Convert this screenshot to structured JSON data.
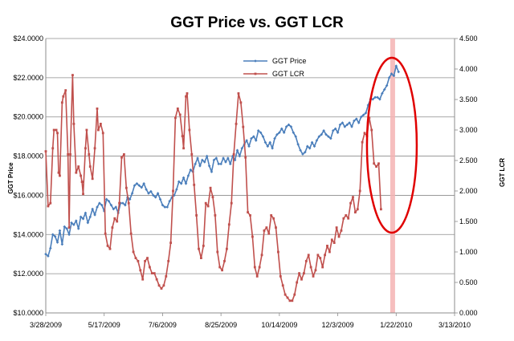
{
  "chart_data": {
    "type": "line",
    "title": "GGT Price vs. GGT LCR",
    "ylabel_left": "GGT Price",
    "ylabel_right": "GGT LCR",
    "x_ticks": [
      "3/28/2009",
      "5/17/2009",
      "7/6/2009",
      "8/25/2009",
      "10/14/2009",
      "12/3/2009",
      "1/22/2010",
      "3/13/2010"
    ],
    "x_range_days": [
      0,
      350
    ],
    "y_left": {
      "min": 10,
      "max": 24,
      "step": 2,
      "tick_labels": [
        "$10.0000",
        "$12.0000",
        "$14.0000",
        "$16.0000",
        "$18.0000",
        "$20.0000",
        "$22.0000",
        "$24.0000"
      ]
    },
    "y_right": {
      "min": 0,
      "max": 4.5,
      "step": 0.5,
      "tick_labels": [
        "0.000",
        "0.500",
        "1.000",
        "1.500",
        "2.000",
        "2.500",
        "3.000",
        "3.500",
        "4.000",
        "4.500"
      ]
    },
    "gridlines": true,
    "legend_position": "top-center",
    "highlight": {
      "x_day": 297,
      "note": "vertical shaded band with red ellipse around recent LCR spike"
    },
    "series": [
      {
        "name": "GGT Price",
        "axis": "left",
        "color": "#4a7ebb",
        "points": [
          [
            0,
            13.0
          ],
          [
            2,
            12.9
          ],
          [
            4,
            13.3
          ],
          [
            6,
            14.0
          ],
          [
            8,
            13.9
          ],
          [
            10,
            13.6
          ],
          [
            12,
            14.2
          ],
          [
            14,
            13.5
          ],
          [
            16,
            14.4
          ],
          [
            18,
            14.3
          ],
          [
            20,
            14.0
          ],
          [
            22,
            14.6
          ],
          [
            24,
            14.5
          ],
          [
            26,
            14.7
          ],
          [
            28,
            14.3
          ],
          [
            30,
            14.9
          ],
          [
            32,
            14.8
          ],
          [
            34,
            15.1
          ],
          [
            36,
            14.6
          ],
          [
            38,
            14.9
          ],
          [
            40,
            15.3
          ],
          [
            42,
            15.0
          ],
          [
            44,
            15.4
          ],
          [
            46,
            15.6
          ],
          [
            48,
            15.5
          ],
          [
            50,
            15.2
          ],
          [
            52,
            15.8
          ],
          [
            54,
            15.7
          ],
          [
            56,
            15.5
          ],
          [
            58,
            15.3
          ],
          [
            60,
            15.4
          ],
          [
            62,
            15.1
          ],
          [
            64,
            15.6
          ],
          [
            66,
            15.6
          ],
          [
            68,
            15.5
          ],
          [
            70,
            15.9
          ],
          [
            72,
            15.8
          ],
          [
            74,
            16.1
          ],
          [
            76,
            16.5
          ],
          [
            78,
            16.6
          ],
          [
            80,
            16.5
          ],
          [
            82,
            16.4
          ],
          [
            84,
            16.6
          ],
          [
            86,
            16.3
          ],
          [
            88,
            16.1
          ],
          [
            90,
            16.2
          ],
          [
            92,
            16.0
          ],
          [
            94,
            15.9
          ],
          [
            96,
            16.1
          ],
          [
            98,
            15.8
          ],
          [
            100,
            15.5
          ],
          [
            102,
            15.4
          ],
          [
            104,
            15.4
          ],
          [
            106,
            15.7
          ],
          [
            108,
            15.9
          ],
          [
            110,
            16.0
          ],
          [
            112,
            16.3
          ],
          [
            114,
            16.7
          ],
          [
            116,
            16.6
          ],
          [
            118,
            16.9
          ],
          [
            120,
            16.6
          ],
          [
            122,
            17.0
          ],
          [
            124,
            17.3
          ],
          [
            126,
            17.2
          ],
          [
            128,
            17.6
          ],
          [
            130,
            17.9
          ],
          [
            132,
            17.5
          ],
          [
            134,
            17.8
          ],
          [
            136,
            17.7
          ],
          [
            138,
            18.0
          ],
          [
            140,
            17.5
          ],
          [
            142,
            17.2
          ],
          [
            144,
            17.8
          ],
          [
            146,
            17.9
          ],
          [
            148,
            17.6
          ],
          [
            150,
            17.6
          ],
          [
            152,
            17.9
          ],
          [
            154,
            17.7
          ],
          [
            156,
            17.9
          ],
          [
            158,
            17.6
          ],
          [
            160,
            18.0
          ],
          [
            162,
            17.8
          ],
          [
            164,
            18.3
          ],
          [
            166,
            18.0
          ],
          [
            168,
            18.4
          ],
          [
            170,
            18.6
          ],
          [
            172,
            18.8
          ],
          [
            174,
            18.5
          ],
          [
            176,
            18.9
          ],
          [
            178,
            19.0
          ],
          [
            180,
            18.8
          ],
          [
            182,
            19.3
          ],
          [
            184,
            19.2
          ],
          [
            186,
            19.0
          ],
          [
            188,
            18.7
          ],
          [
            190,
            18.5
          ],
          [
            192,
            18.7
          ],
          [
            194,
            18.4
          ],
          [
            196,
            18.9
          ],
          [
            198,
            19.1
          ],
          [
            200,
            19.2
          ],
          [
            202,
            19.4
          ],
          [
            204,
            19.2
          ],
          [
            206,
            19.5
          ],
          [
            208,
            19.6
          ],
          [
            210,
            19.5
          ],
          [
            212,
            19.2
          ],
          [
            214,
            19.0
          ],
          [
            216,
            18.6
          ],
          [
            218,
            18.3
          ],
          [
            220,
            18.1
          ],
          [
            222,
            18.2
          ],
          [
            224,
            18.5
          ],
          [
            226,
            18.4
          ],
          [
            228,
            18.7
          ],
          [
            230,
            18.5
          ],
          [
            232,
            18.8
          ],
          [
            234,
            19.0
          ],
          [
            236,
            19.1
          ],
          [
            238,
            19.3
          ],
          [
            240,
            19.1
          ],
          [
            242,
            19.0
          ],
          [
            244,
            18.9
          ],
          [
            246,
            19.3
          ],
          [
            248,
            19.4
          ],
          [
            250,
            19.2
          ],
          [
            252,
            19.6
          ],
          [
            254,
            19.7
          ],
          [
            256,
            19.5
          ],
          [
            258,
            19.6
          ],
          [
            260,
            19.7
          ],
          [
            262,
            19.5
          ],
          [
            264,
            19.8
          ],
          [
            266,
            19.9
          ],
          [
            268,
            19.7
          ],
          [
            270,
            20.0
          ],
          [
            272,
            20.1
          ],
          [
            274,
            20.2
          ],
          [
            276,
            20.6
          ],
          [
            278,
            20.9
          ],
          [
            280,
            20.9
          ],
          [
            282,
            21.0
          ],
          [
            284,
            21.0
          ],
          [
            286,
            20.9
          ],
          [
            288,
            21.2
          ],
          [
            290,
            21.4
          ],
          [
            292,
            21.6
          ],
          [
            294,
            22.0
          ],
          [
            296,
            22.2
          ],
          [
            298,
            22.1
          ],
          [
            300,
            22.6
          ],
          [
            302,
            22.3
          ]
        ]
      },
      {
        "name": "GGT LCR",
        "axis": "right",
        "color": "#c0504d",
        "points": [
          [
            0,
            2.65
          ],
          [
            2,
            1.75
          ],
          [
            4,
            1.8
          ],
          [
            6,
            2.7
          ],
          [
            7,
            3.0
          ],
          [
            9,
            3.0
          ],
          [
            10,
            2.95
          ],
          [
            11,
            2.3
          ],
          [
            12,
            2.25
          ],
          [
            14,
            3.45
          ],
          [
            15,
            3.55
          ],
          [
            17,
            3.65
          ],
          [
            19,
            2.6
          ],
          [
            20,
            1.4
          ],
          [
            21,
            2.6
          ],
          [
            23,
            3.9
          ],
          [
            24,
            3.1
          ],
          [
            26,
            2.3
          ],
          [
            28,
            2.4
          ],
          [
            30,
            2.25
          ],
          [
            31,
            2.15
          ],
          [
            32,
            1.95
          ],
          [
            34,
            2.7
          ],
          [
            35,
            3.0
          ],
          [
            37,
            2.6
          ],
          [
            38,
            2.4
          ],
          [
            40,
            2.2
          ],
          [
            42,
            2.7
          ],
          [
            44,
            3.35
          ],
          [
            45,
            3.0
          ],
          [
            47,
            3.1
          ],
          [
            49,
            2.95
          ],
          [
            51,
            1.3
          ],
          [
            53,
            1.1
          ],
          [
            55,
            1.05
          ],
          [
            57,
            1.4
          ],
          [
            59,
            1.55
          ],
          [
            61,
            1.5
          ],
          [
            63,
            1.8
          ],
          [
            65,
            2.55
          ],
          [
            67,
            2.6
          ],
          [
            69,
            2.05
          ],
          [
            71,
            1.8
          ],
          [
            73,
            1.3
          ],
          [
            75,
            1.0
          ],
          [
            77,
            0.9
          ],
          [
            79,
            0.85
          ],
          [
            81,
            0.7
          ],
          [
            83,
            0.55
          ],
          [
            85,
            0.85
          ],
          [
            87,
            0.9
          ],
          [
            89,
            0.75
          ],
          [
            91,
            0.65
          ],
          [
            93,
            0.65
          ],
          [
            95,
            0.55
          ],
          [
            97,
            0.45
          ],
          [
            99,
            0.4
          ],
          [
            101,
            0.45
          ],
          [
            103,
            0.6
          ],
          [
            105,
            0.85
          ],
          [
            107,
            1.15
          ],
          [
            109,
            2.0
          ],
          [
            111,
            3.2
          ],
          [
            113,
            3.35
          ],
          [
            115,
            3.25
          ],
          [
            117,
            2.9
          ],
          [
            118,
            2.7
          ],
          [
            120,
            3.55
          ],
          [
            121,
            3.6
          ],
          [
            123,
            3.0
          ],
          [
            125,
            2.6
          ],
          [
            127,
            2.1
          ],
          [
            129,
            1.6
          ],
          [
            131,
            1.05
          ],
          [
            133,
            0.9
          ],
          [
            135,
            1.1
          ],
          [
            137,
            1.8
          ],
          [
            139,
            1.75
          ],
          [
            141,
            2.05
          ],
          [
            143,
            1.9
          ],
          [
            145,
            1.6
          ],
          [
            147,
            1.0
          ],
          [
            149,
            0.75
          ],
          [
            151,
            0.7
          ],
          [
            153,
            0.85
          ],
          [
            155,
            1.05
          ],
          [
            157,
            1.45
          ],
          [
            159,
            1.8
          ],
          [
            161,
            2.6
          ],
          [
            163,
            3.1
          ],
          [
            165,
            3.6
          ],
          [
            167,
            3.45
          ],
          [
            169,
            3.05
          ],
          [
            171,
            2.55
          ],
          [
            173,
            1.65
          ],
          [
            175,
            1.6
          ],
          [
            177,
            1.25
          ],
          [
            179,
            0.75
          ],
          [
            181,
            0.6
          ],
          [
            183,
            0.75
          ],
          [
            185,
            0.95
          ],
          [
            187,
            1.35
          ],
          [
            189,
            1.4
          ],
          [
            191,
            1.3
          ],
          [
            193,
            1.6
          ],
          [
            195,
            1.55
          ],
          [
            197,
            1.4
          ],
          [
            199,
            1.0
          ],
          [
            201,
            0.6
          ],
          [
            203,
            0.45
          ],
          [
            205,
            0.3
          ],
          [
            207,
            0.25
          ],
          [
            209,
            0.2
          ],
          [
            211,
            0.2
          ],
          [
            213,
            0.3
          ],
          [
            215,
            0.5
          ],
          [
            217,
            0.65
          ],
          [
            219,
            0.55
          ],
          [
            221,
            0.65
          ],
          [
            223,
            0.85
          ],
          [
            225,
            0.95
          ],
          [
            227,
            0.75
          ],
          [
            229,
            0.6
          ],
          [
            231,
            0.7
          ],
          [
            233,
            0.95
          ],
          [
            235,
            0.9
          ],
          [
            237,
            0.75
          ],
          [
            239,
            0.95
          ],
          [
            241,
            1.1
          ],
          [
            243,
            1.0
          ],
          [
            245,
            1.2
          ],
          [
            247,
            1.15
          ],
          [
            249,
            1.4
          ],
          [
            251,
            1.25
          ],
          [
            253,
            1.35
          ],
          [
            255,
            1.55
          ],
          [
            257,
            1.6
          ],
          [
            259,
            1.55
          ],
          [
            261,
            1.8
          ],
          [
            263,
            1.9
          ],
          [
            265,
            1.65
          ],
          [
            267,
            1.7
          ],
          [
            269,
            2.0
          ],
          [
            271,
            2.8
          ],
          [
            273,
            2.95
          ],
          [
            275,
            2.9
          ],
          [
            277,
            3.2
          ],
          [
            279,
            3.0
          ],
          [
            281,
            2.45
          ],
          [
            283,
            2.4
          ],
          [
            285,
            2.45
          ],
          [
            287,
            1.7
          ]
        ]
      }
    ]
  }
}
